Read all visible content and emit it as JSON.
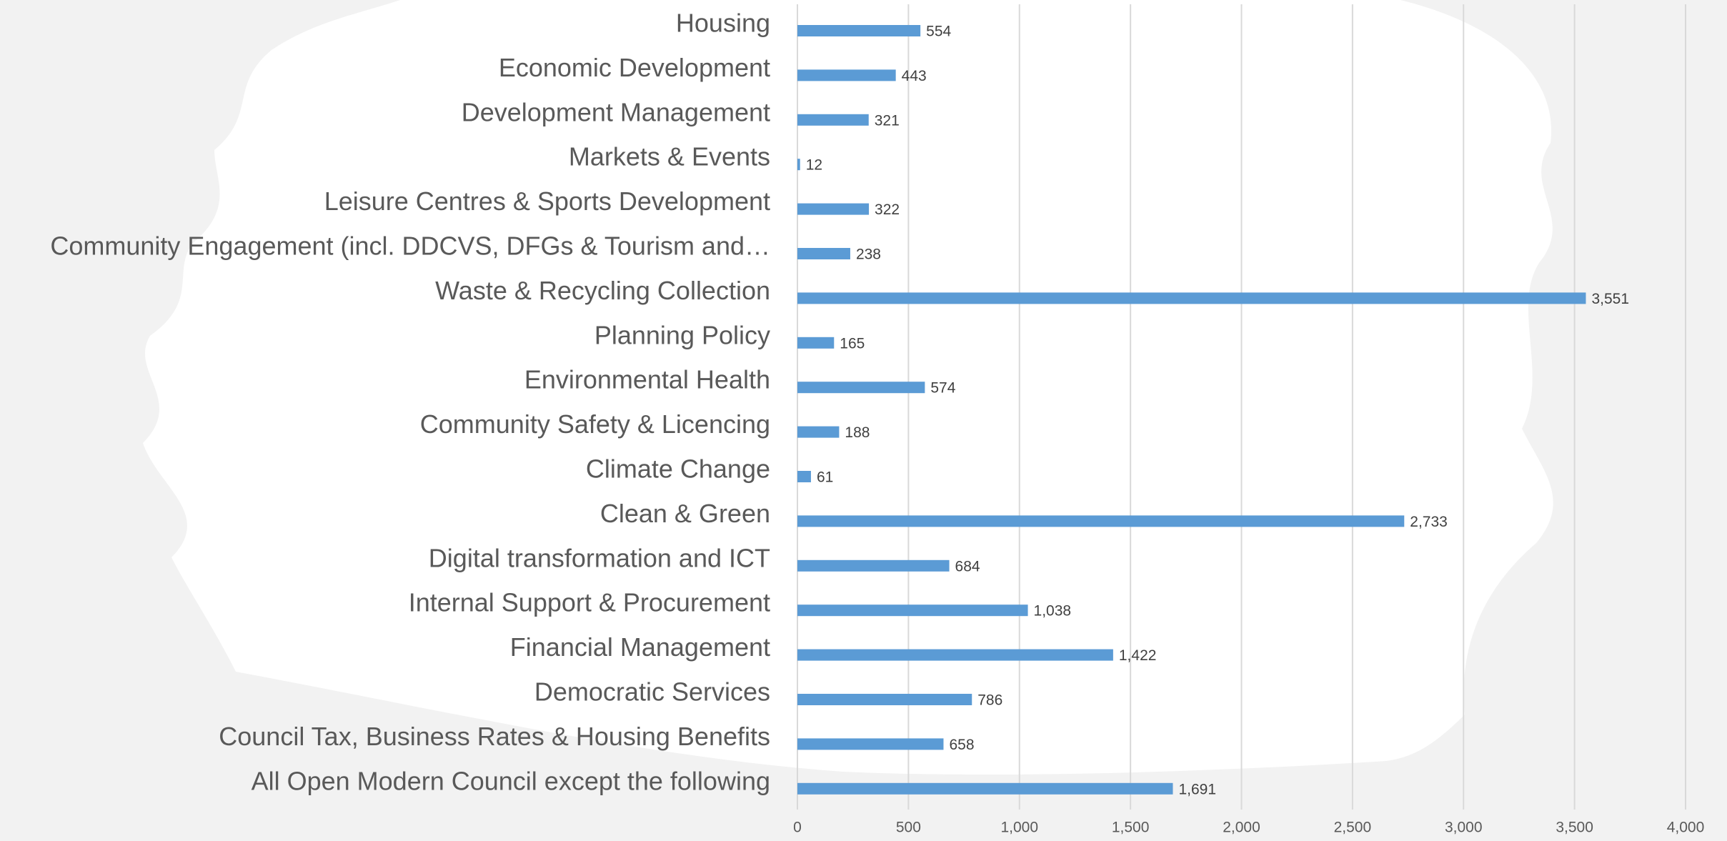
{
  "chart_data": {
    "type": "bar",
    "orientation": "horizontal",
    "categories": [
      "Housing",
      "Economic Development",
      "Development Management",
      "Markets & Events",
      "Leisure Centres & Sports Development",
      "Community Engagement (incl. DDCVS, DFGs  &  Tourism and…",
      "Waste & Recycling Collection",
      "Planning Policy",
      "Environmental Health",
      "Community Safety & Licencing",
      "Climate Change",
      "Clean & Green",
      "Digital transformation and ICT",
      "Internal Support & Procurement",
      "Financial Management",
      "Democratic Services",
      "Council Tax, Business Rates & Housing Benefits",
      "All Open Modern Council except the following"
    ],
    "values": [
      554,
      443,
      321,
      12,
      322,
      238,
      3551,
      165,
      574,
      188,
      61,
      2733,
      684,
      1038,
      1422,
      786,
      658,
      1691
    ],
    "value_labels": [
      "554",
      "443",
      "321",
      "12",
      "322",
      "238",
      "3,551",
      "165",
      "574",
      "188",
      "61",
      "2,733",
      "684",
      "1,038",
      "1,422",
      "786",
      "658",
      "1,691"
    ],
    "color": "#5b9bd5",
    "xlim": [
      0,
      4000
    ],
    "xticks": [
      0,
      500,
      {
        "value": 1000,
        "label": "1,000"
      },
      {
        "value": 1500,
        "label": "1,500"
      },
      {
        "value": 2000,
        "label": "2,000"
      },
      {
        "value": 2500,
        "label": "2,500"
      },
      {
        "value": 3000,
        "label": "3,000"
      },
      {
        "value": 3500,
        "label": "3,500"
      },
      {
        "value": 4000,
        "label": "4,000"
      }
    ],
    "grid": true
  }
}
